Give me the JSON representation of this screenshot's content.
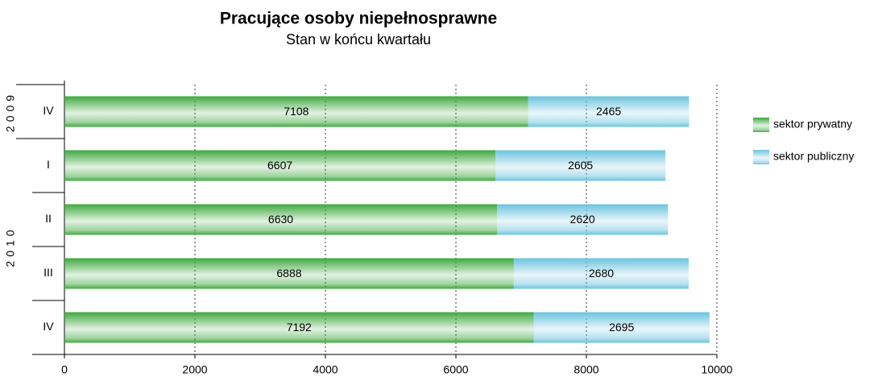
{
  "chart_data": {
    "type": "stacked_bar_horizontal",
    "title": "Pracujące osoby niepełnosprawne",
    "subtitle": "Stan w końcu kwartału",
    "categories": [
      "IV",
      "I",
      "II",
      "III",
      "IV"
    ],
    "category_groups": [
      "2009",
      "2010",
      "2010",
      "2010",
      "2010"
    ],
    "series": [
      {
        "name": "sektor prywatny",
        "color": "#3fa83f",
        "values": [
          7108,
          6607,
          6630,
          6888,
          7192
        ]
      },
      {
        "name": "sektor publiczny",
        "color": "#6cc3de",
        "values": [
          2465,
          2605,
          2620,
          2680,
          2695
        ]
      }
    ],
    "xlim": [
      0,
      10000
    ],
    "xticks": [
      0,
      2000,
      4000,
      6000,
      8000,
      10000
    ],
    "grid": true,
    "legend": "right"
  }
}
